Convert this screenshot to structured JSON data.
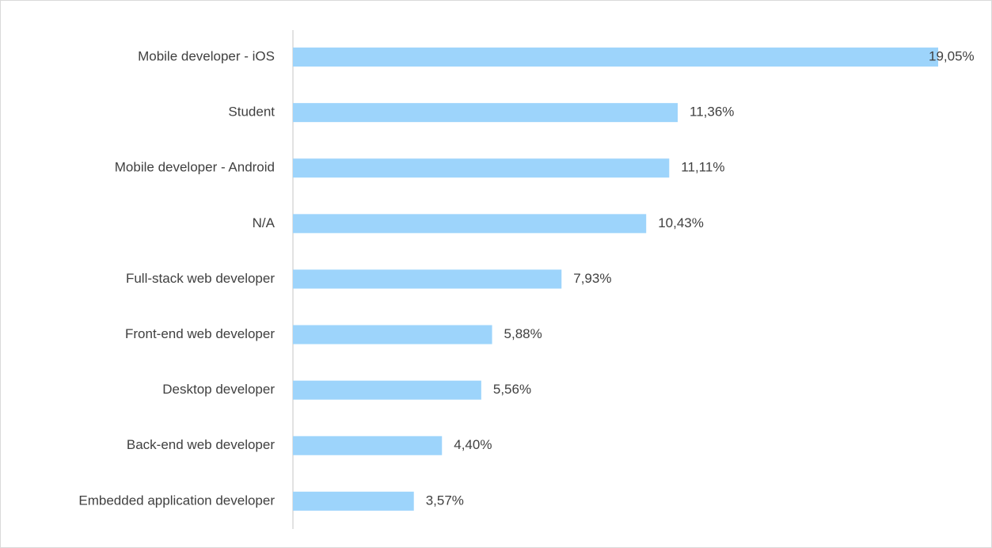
{
  "chart_data": {
    "type": "bar",
    "orientation": "horizontal",
    "categories": [
      "Mobile developer - iOS",
      "Student",
      "Mobile developer - Android",
      "N/A",
      "Full-stack web developer",
      "Front-end web developer",
      "Desktop developer",
      "Back-end web developer",
      "Embedded application developer"
    ],
    "values": [
      19.05,
      11.36,
      11.11,
      10.43,
      7.93,
      5.88,
      5.56,
      4.4,
      3.57
    ],
    "value_labels": [
      "19,05%",
      "11,36%",
      "11,11%",
      "10,43%",
      "7,93%",
      "5,88%",
      "5,56%",
      "4,40%",
      "3,57%"
    ],
    "color": "#9dd4fb"
  }
}
